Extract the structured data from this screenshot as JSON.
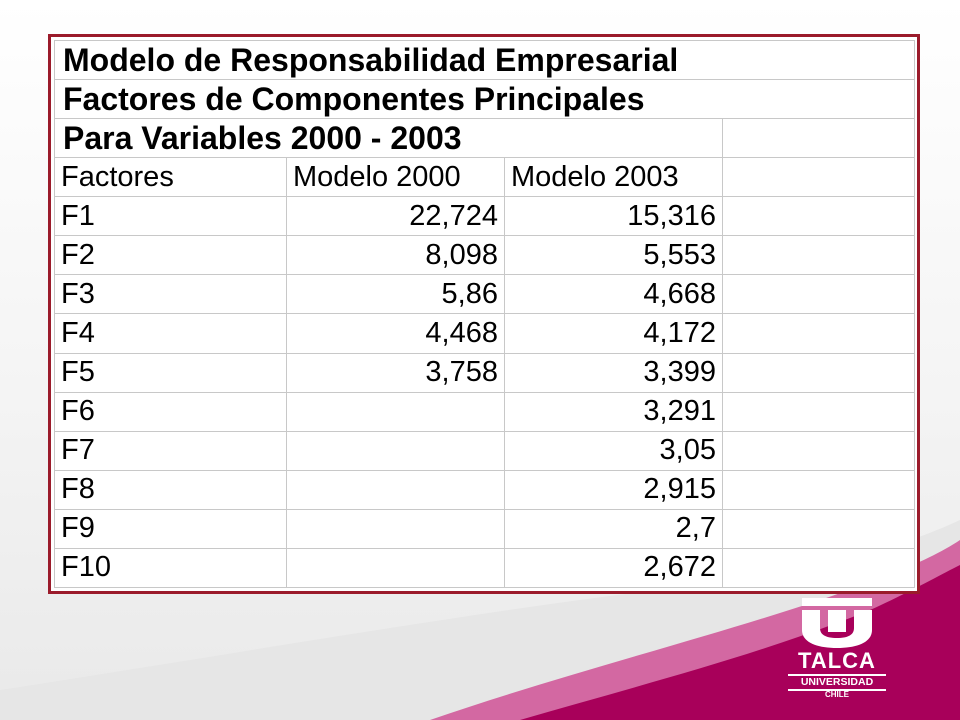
{
  "table": {
    "titles": [
      "Modelo de Responsabilidad Empresarial",
      "Factores de Componentes Principales",
      "Para Variables 2000 - 2003"
    ],
    "headers": [
      "Factores",
      "Modelo 2000",
      "Modelo 2003"
    ],
    "rows": [
      {
        "factor": "F1",
        "m2000": "22,724",
        "m2003": "15,316"
      },
      {
        "factor": "F2",
        "m2000": "8,098",
        "m2003": "5,553"
      },
      {
        "factor": "F3",
        "m2000": "5,86",
        "m2003": "4,668"
      },
      {
        "factor": "F4",
        "m2000": "4,468",
        "m2003": "4,172"
      },
      {
        "factor": "F5",
        "m2000": "3,758",
        "m2003": "3,399"
      },
      {
        "factor": "F6",
        "m2000": "",
        "m2003": "3,291"
      },
      {
        "factor": "F7",
        "m2000": "",
        "m2003": "3,05"
      },
      {
        "factor": "F8",
        "m2000": "",
        "m2003": "2,915"
      },
      {
        "factor": "F9",
        "m2000": "",
        "m2003": "2,7"
      },
      {
        "factor": "F10",
        "m2000": "",
        "m2003": "2,672"
      }
    ]
  },
  "logo": {
    "brand": "TALCA",
    "subtitle": "UNIVERSIDAD",
    "city": "CHILE"
  },
  "colors": {
    "frame": "#9b1b2b",
    "wave": "#b0005a"
  }
}
